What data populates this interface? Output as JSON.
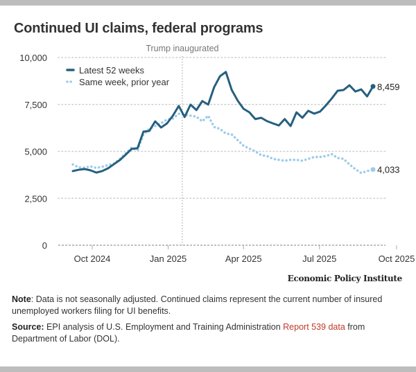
{
  "title": "Continued UI claims, federal programs",
  "credit": "Economic Policy Institute",
  "note": {
    "label": "Note",
    "text": ": Data is not seasonally adjusted. Continued claims represent the current number of insured unemployed workers filing for UI benefits."
  },
  "source": {
    "label": "Source:",
    "text_before": " EPI analysis of U.S. Employment and Training Administration ",
    "link_text": "Report 539 data",
    "text_after": " from Department of Labor (DOL)."
  },
  "colors": {
    "latest": "#265f7f",
    "prior": "#9ccbeb",
    "grid": "#cccccc",
    "link": "#c0392b"
  },
  "chart_data": {
    "type": "line",
    "title": "Continued UI claims, federal programs",
    "xlabel": "",
    "ylabel": "",
    "ylim": [
      0,
      10000
    ],
    "yticks": [
      0,
      2500,
      5000,
      7500,
      10000
    ],
    "ytick_labels": [
      "0",
      "2,500",
      "5,000",
      "7,500",
      "10,000"
    ],
    "xticks": [
      {
        "label": "Oct 2024",
        "week": 3.3
      },
      {
        "label": "Jan 2025",
        "week": 16.2
      },
      {
        "label": "Apr 2025",
        "week": 29
      },
      {
        "label": "Jul 2025",
        "week": 41.9
      },
      {
        "label": "Oct 2025",
        "week": 55
      }
    ],
    "xlim": [
      -0.3,
      57
    ],
    "grid": true,
    "legend": "top-left",
    "annotations": [
      {
        "label": "Trump inaugurated",
        "week": 18.6
      }
    ],
    "series": [
      {
        "name": "Latest 52 weeks",
        "style": "solid",
        "end_label": "8,459",
        "values": [
          3950,
          4020,
          4060,
          3990,
          3870,
          3950,
          4100,
          4320,
          4540,
          4830,
          5130,
          5170,
          6050,
          6090,
          6600,
          6270,
          6490,
          6900,
          7420,
          6830,
          7490,
          7200,
          7680,
          7490,
          8410,
          9000,
          9230,
          8270,
          7710,
          7270,
          7080,
          6720,
          6790,
          6610,
          6490,
          6380,
          6720,
          6350,
          7080,
          6790,
          7160,
          7010,
          7120,
          7450,
          7820,
          8230,
          8270,
          8520,
          8190,
          8300,
          7930,
          8459
        ]
      },
      {
        "name": "Same week, prior year",
        "style": "dotted",
        "end_label": "4,033",
        "values": [
          4300,
          4150,
          4130,
          4200,
          4120,
          4180,
          4270,
          4350,
          4600,
          4900,
          5200,
          5050,
          5900,
          6200,
          6350,
          6500,
          6700,
          6750,
          7000,
          6950,
          6900,
          6850,
          6600,
          6900,
          6300,
          6200,
          5950,
          5900,
          5600,
          5300,
          5150,
          5000,
          4800,
          4750,
          4600,
          4550,
          4500,
          4550,
          4550,
          4500,
          4600,
          4700,
          4700,
          4750,
          4850,
          4650,
          4600,
          4300,
          4050,
          3850,
          3950,
          4033
        ]
      }
    ]
  }
}
